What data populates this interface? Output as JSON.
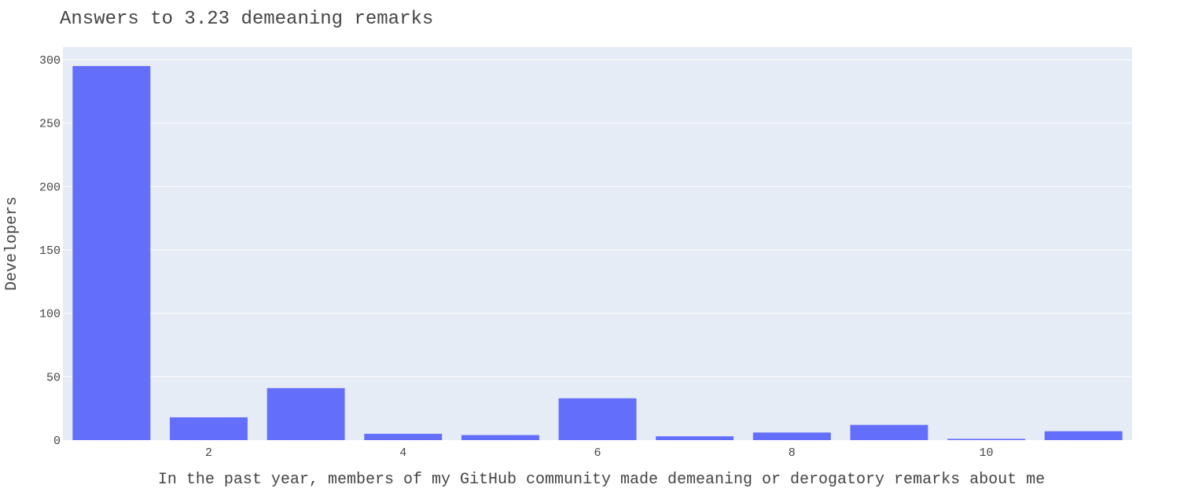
{
  "chart_data": {
    "type": "bar",
    "title": "Answers to 3.23 demeaning remarks",
    "xlabel": "In the past year, members of my GitHub community made demeaning or derogatory remarks about me",
    "ylabel": "Developers",
    "x": [
      1,
      2,
      3,
      4,
      5,
      6,
      7,
      8,
      9,
      10,
      11
    ],
    "values": [
      295,
      18,
      41,
      5,
      4,
      33,
      3,
      6,
      12,
      1,
      7
    ],
    "xlim": [
      0.5,
      11.5
    ],
    "ylim": [
      0,
      300
    ],
    "xticks": [
      2,
      4,
      6,
      8,
      10
    ],
    "yticks": [
      0,
      50,
      100,
      150,
      200,
      250,
      300
    ],
    "grid": true,
    "bar_color": "#636efa",
    "plot_bg": "#e5ecf6"
  }
}
